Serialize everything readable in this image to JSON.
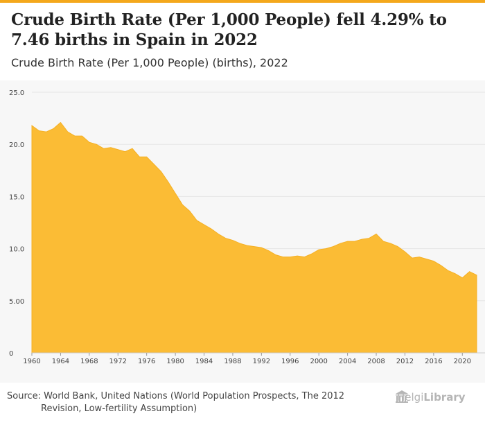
{
  "header": {
    "title": "Crude Birth Rate (Per 1,000 People) fell 4.29% to 7.46 births in Spain in 2022",
    "subtitle": "Crude Birth Rate (Per 1,000 People) (births), 2022"
  },
  "source": {
    "label": "Source:",
    "line1": "World Bank, United Nations (World Population Prospects, The 2012",
    "line2": "Revision, Low-fertility Assumption)"
  },
  "logo": {
    "text_regular": "Helgi",
    "text_bold": "Library",
    "icon": "building-icon"
  },
  "colors": {
    "accent": "#f4a81c",
    "area": "#fbbc35",
    "background": "#f7f7f7",
    "grid": "#e6e6e6"
  },
  "chart_data": {
    "type": "area",
    "title": "Crude Birth Rate (Per 1,000 People) (births), 2022",
    "xlabel": "",
    "ylabel": "",
    "xlim": [
      1960,
      2022
    ],
    "ylim": [
      0,
      25
    ],
    "y_ticks": [
      0,
      5,
      10,
      15,
      20,
      25
    ],
    "y_tick_labels": [
      "0",
      "5.00",
      "10.0",
      "15.0",
      "20.0",
      "25.0"
    ],
    "x_ticks": [
      1960,
      1964,
      1968,
      1972,
      1976,
      1980,
      1984,
      1988,
      1992,
      1996,
      2000,
      2004,
      2008,
      2012,
      2016,
      2020
    ],
    "grid": true,
    "series": [
      {
        "name": "Spain",
        "x": [
          1960,
          1961,
          1962,
          1963,
          1964,
          1965,
          1966,
          1967,
          1968,
          1969,
          1970,
          1971,
          1972,
          1973,
          1974,
          1975,
          1976,
          1977,
          1978,
          1979,
          1980,
          1981,
          1982,
          1983,
          1984,
          1985,
          1986,
          1987,
          1988,
          1989,
          1990,
          1991,
          1992,
          1993,
          1994,
          1995,
          1996,
          1997,
          1998,
          1999,
          2000,
          2001,
          2002,
          2003,
          2004,
          2005,
          2006,
          2007,
          2008,
          2009,
          2010,
          2011,
          2012,
          2013,
          2014,
          2015,
          2016,
          2017,
          2018,
          2019,
          2020,
          2021,
          2022
        ],
        "values": [
          21.8,
          21.3,
          21.2,
          21.5,
          22.1,
          21.2,
          20.8,
          20.8,
          20.2,
          20.0,
          19.6,
          19.7,
          19.5,
          19.3,
          19.6,
          18.8,
          18.8,
          18.1,
          17.4,
          16.4,
          15.3,
          14.2,
          13.6,
          12.7,
          12.3,
          11.9,
          11.4,
          11.0,
          10.8,
          10.5,
          10.3,
          10.2,
          10.1,
          9.8,
          9.4,
          9.2,
          9.2,
          9.3,
          9.2,
          9.5,
          9.9,
          10.0,
          10.2,
          10.5,
          10.7,
          10.7,
          10.9,
          11.0,
          11.4,
          10.7,
          10.5,
          10.2,
          9.7,
          9.1,
          9.2,
          9.0,
          8.8,
          8.4,
          7.9,
          7.6,
          7.2,
          7.8,
          7.46
        ]
      }
    ]
  }
}
